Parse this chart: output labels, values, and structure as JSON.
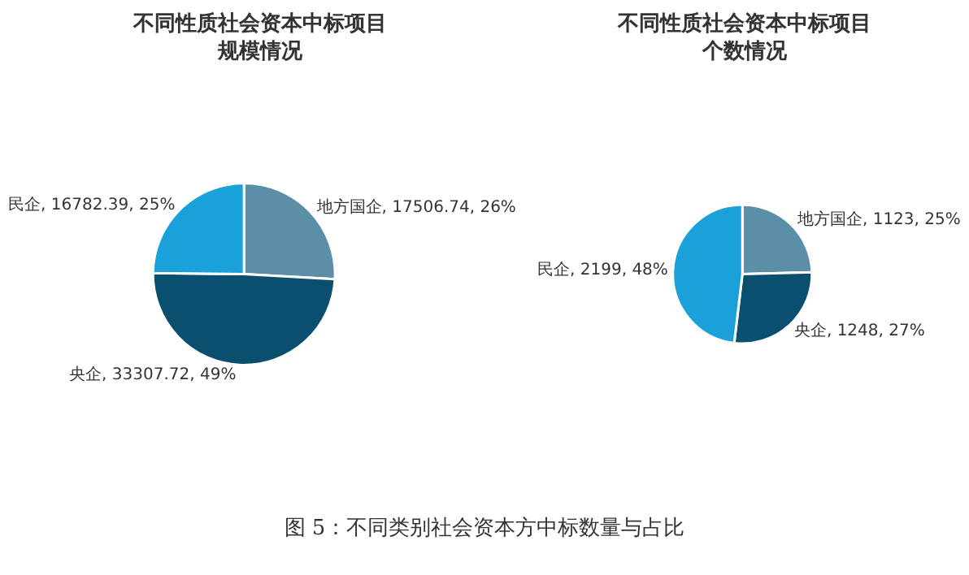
{
  "chart_data": [
    {
      "type": "pie",
      "title": "不同性质社会资本中标项目规模情况",
      "categories": [
        "地方国企",
        "央企",
        "民企"
      ],
      "values": [
        17506.74,
        33307.72,
        16782.39
      ],
      "colors": [
        "#5b8fa8",
        "#0a4f6e",
        "#1ba1d9"
      ],
      "value_labels": [
        "17506.74, 26%",
        "33307.72, 49%",
        "16782.39, 25%"
      ],
      "legend": false,
      "annotations": [
        "图 5：不同类别社会资本方中标数量与占比"
      ]
    },
    {
      "type": "pie",
      "title": "不同性质社会资本中标项目个数情况",
      "categories": [
        "地方国企",
        "央企",
        "民企"
      ],
      "values": [
        1123,
        1248,
        2199
      ],
      "colors": [
        "#5b8fa8",
        "#0a4f6e",
        "#1ba1d9"
      ],
      "value_labels": [
        "1123, 25%",
        "1248, 27%",
        "2199, 48%"
      ],
      "legend": false
    }
  ]
}
